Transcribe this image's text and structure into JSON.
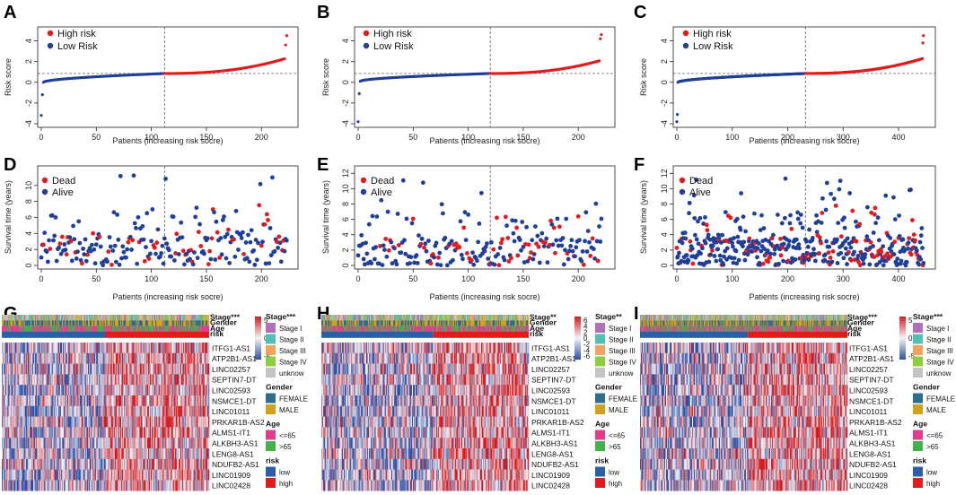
{
  "figure": {
    "panel_labels": [
      "A",
      "B",
      "C",
      "D",
      "E",
      "F",
      "G",
      "H",
      "I"
    ]
  },
  "colors": {
    "high_risk": "#e41a1c",
    "low_risk": "#1f3f99",
    "dead": "#e41a1c",
    "alive": "#1f3f99",
    "heat_low": "#3a5bb0",
    "heat_mid": "#f4f4f8",
    "heat_high": "#d7191c",
    "stage": [
      "#b06fb8",
      "#4fc0b3",
      "#f4a35c",
      "#8ccc3f",
      "#c4c4c4"
    ],
    "gender": [
      "#2e6d8e",
      "#d4a017"
    ],
    "age": [
      "#e43b8f",
      "#43b04a"
    ],
    "risk": [
      "#2d5fa8",
      "#e41a1c"
    ]
  },
  "chart_data": [
    {
      "id": "A",
      "type": "scatter",
      "xlabel": "Patients (increasing risk socre)",
      "ylabel": "Risk score",
      "xlim": [
        0,
        230
      ],
      "ylim": [
        -4,
        5
      ],
      "xticks": [
        "0",
        "50",
        "100",
        "150",
        "200"
      ],
      "yticks": [
        "-4",
        "-2",
        "0",
        "2",
        "4"
      ],
      "n": 224,
      "cutoff_index": 112,
      "cutoff_value": 0.85,
      "shape": {
        "lowmin": -3.2,
        "low2": -1.2,
        "k": 0.7,
        "hmax": 2.3,
        "hx1": 3.6,
        "hx2": 4.5
      },
      "legend": [
        "High risk",
        "Low Risk"
      ]
    },
    {
      "id": "B",
      "type": "scatter",
      "xlabel": "Patients (increasing risk socre)",
      "ylabel": "Risk score",
      "xlim": [
        0,
        230
      ],
      "ylim": [
        -4,
        5
      ],
      "xticks": [
        "0",
        "50",
        "100",
        "150",
        "200"
      ],
      "yticks": [
        "-4",
        "-2",
        "0",
        "2",
        "4"
      ],
      "n": 222,
      "cutoff_index": 120,
      "cutoff_value": 0.85,
      "shape": {
        "lowmin": -3.8,
        "low2": -1.1,
        "k": 0.6,
        "hmax": 2.1,
        "hx1": 4.2,
        "hx2": 4.6
      },
      "legend": [
        "High risk",
        "Low Risk"
      ]
    },
    {
      "id": "C",
      "type": "scatter",
      "xlabel": "Patients (increasing risk socre)",
      "ylabel": "Risk score",
      "xlim": [
        0,
        460
      ],
      "ylim": [
        -4,
        5
      ],
      "xticks": [
        "0",
        "100",
        "200",
        "300",
        "400"
      ],
      "yticks": [
        "-4",
        "-2",
        "0",
        "2",
        "4"
      ],
      "n": 446,
      "cutoff_index": 232,
      "cutoff_value": 0.85,
      "shape": {
        "lowmin": -3.8,
        "low2": -3.1,
        "k": 0.7,
        "hmax": 2.3,
        "hx1": 3.8,
        "hx2": 4.5
      },
      "legend": [
        "High risk",
        "Low Risk"
      ]
    },
    {
      "id": "D",
      "type": "scatter",
      "xlabel": "Patients (increasing risk socre)",
      "ylabel": "Survival time (years)",
      "xlim": [
        0,
        230
      ],
      "ylim": [
        0,
        12
      ],
      "xticks": [
        "0",
        "50",
        "100",
        "150",
        "200"
      ],
      "yticks": [
        "0",
        "2",
        "4",
        "6",
        "8",
        "10"
      ],
      "n": 224,
      "cutoff_index": 112,
      "seed": 11,
      "legend": [
        "Dead",
        "Alive"
      ]
    },
    {
      "id": "E",
      "type": "scatter",
      "xlabel": "Patients (increasing risk socre)",
      "ylabel": "Survival time (years)",
      "xlim": [
        0,
        230
      ],
      "ylim": [
        0,
        12.5
      ],
      "xticks": [
        "0",
        "50",
        "100",
        "150",
        "200"
      ],
      "yticks": [
        "0",
        "2",
        "4",
        "6",
        "8",
        "10",
        "12"
      ],
      "n": 222,
      "cutoff_index": 120,
      "seed": 23,
      "legend": [
        "Dead",
        "Alive"
      ]
    },
    {
      "id": "F",
      "type": "scatter",
      "xlabel": "Patients (increasing risk socre)",
      "ylabel": "Survival time (years)",
      "xlim": [
        0,
        460
      ],
      "ylim": [
        0,
        12.5
      ],
      "xticks": [
        "0",
        "100",
        "200",
        "300",
        "400"
      ],
      "yticks": [
        "0",
        "2",
        "4",
        "6",
        "8",
        "10",
        "12"
      ],
      "n": 446,
      "cutoff_index": 232,
      "seed": 37,
      "legend": [
        "Dead",
        "Alive"
      ]
    },
    {
      "id": "G",
      "type": "heatmap",
      "rows": [
        "ITFG1-AS1",
        "ATP2B1-AS1",
        "LINC02257",
        "SEPTIN7-DT",
        "LINC02593",
        "NSMCE1-DT",
        "LINC01011",
        "PRKAR1B-AS2",
        "ALMS1-IT1",
        "ALKBH3-AS1",
        "LENG8-AS1",
        "NDUFB2-AS1",
        "LINC01909",
        "LINC02428"
      ],
      "annotations": [
        "Stage***",
        "Gender",
        "Age",
        "risk"
      ],
      "n_cols": 224,
      "cutoff_index": 112,
      "seed": 5,
      "colorbar_ticks": [
        "5",
        "0",
        "-5"
      ]
    },
    {
      "id": "H",
      "type": "heatmap",
      "rows": [
        "ITFG1-AS1",
        "ATP2B1-AS1",
        "LINC02257",
        "SEPTIN7-DT",
        "LINC02593",
        "NSMCE1-DT",
        "LINC01011",
        "PRKAR1B-AS2",
        "ALMS1-IT1",
        "ALKBH3-AS1",
        "LENG8-AS1",
        "NDUFB2-AS1",
        "LINC01909",
        "LINC02428"
      ],
      "annotations": [
        "Stage**",
        "Gender",
        "Age",
        "risk"
      ],
      "n_cols": 222,
      "cutoff_index": 120,
      "seed": 9,
      "colorbar_ticks": [
        "6",
        "4",
        "2",
        "0",
        "-2",
        "-4",
        "-6"
      ]
    },
    {
      "id": "I",
      "type": "heatmap",
      "rows": [
        "ITFG1-AS1",
        "ATP2B1-AS1",
        "LINC02257",
        "SEPTIN7-DT",
        "LINC02593",
        "NSMCE1-DT",
        "LINC01011",
        "PRKAR1B-AS2",
        "ALMS1-IT1",
        "ALKBH3-AS1",
        "LENG8-AS1",
        "NDUFB2-AS1",
        "LINC01909",
        "LINC02428"
      ],
      "annotations": [
        "Stage***",
        "Gender",
        "Age",
        "risk"
      ],
      "n_cols": 446,
      "cutoff_index": 232,
      "seed": 17,
      "colorbar_ticks": [
        "5",
        "0",
        "-5"
      ]
    }
  ],
  "heatmap_legend": {
    "stage_title": [
      "Stage***",
      "Stage**",
      "Stage***"
    ],
    "stage_items": [
      "Stage I",
      "Stage II",
      "Stage III",
      "Stage IV",
      "unknow"
    ],
    "gender_title": "Gender",
    "gender_items": [
      "FEMALE",
      "MALE"
    ],
    "age_title": "Age",
    "age_items": [
      "<=65",
      ">65"
    ],
    "risk_title": "risk",
    "risk_items": [
      "low",
      "high"
    ]
  }
}
